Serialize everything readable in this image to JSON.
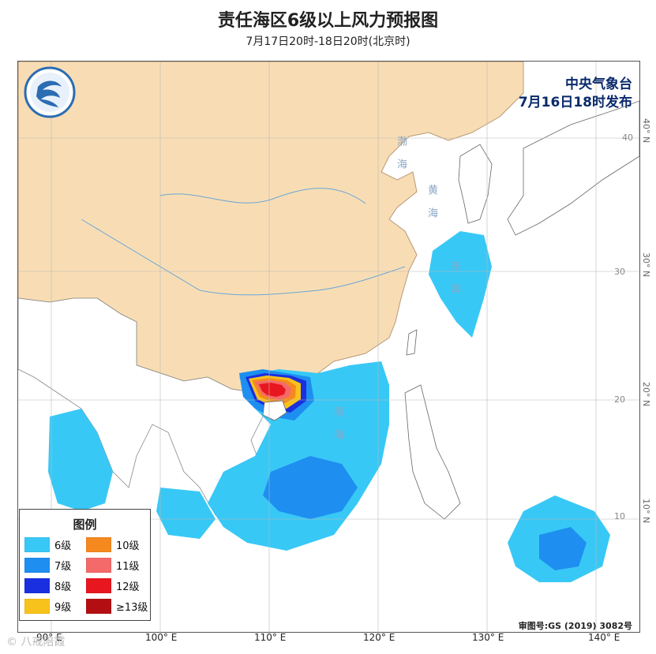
{
  "title": "责任海区6级以上风力预报图",
  "subtitle": "7月17日20时-18日20时(北京时)",
  "issuer": {
    "line1": "中央气象台",
    "line2": "7月16日18时发布"
  },
  "legend": {
    "title": "图例",
    "items": [
      {
        "label": "6级",
        "color": "#38c8f6"
      },
      {
        "label": "10级",
        "color": "#f5891f"
      },
      {
        "label": "7级",
        "color": "#1e8ef0"
      },
      {
        "label": "11级",
        "color": "#f46a6a"
      },
      {
        "label": "8级",
        "color": "#1a2fe0"
      },
      {
        "label": "12级",
        "color": "#e8171f"
      },
      {
        "label": "9级",
        "color": "#f8c21c"
      },
      {
        "label": "≥13级",
        "color": "#b30f12"
      }
    ]
  },
  "longitudes": [
    "90° E",
    "100° E",
    "110° E",
    "120° E",
    "130° E",
    "140° E"
  ],
  "latitudes": [
    "40° N",
    "30° N",
    "20° N",
    "10° N"
  ],
  "lat_inmap": [
    "40",
    "30",
    "20",
    "10"
  ],
  "sea_names": {
    "bohai": "渤海",
    "huanghai": "黄海",
    "donghai": "东海",
    "nanhai": "南海"
  },
  "approval": "审图号:GS (2019) 3082号",
  "watermark": "© 八戒陪霞",
  "colors": {
    "land": "#f8ddb4",
    "sea": "#ffffff",
    "border": "#9a8a7a",
    "river": "#6aa6d8"
  }
}
